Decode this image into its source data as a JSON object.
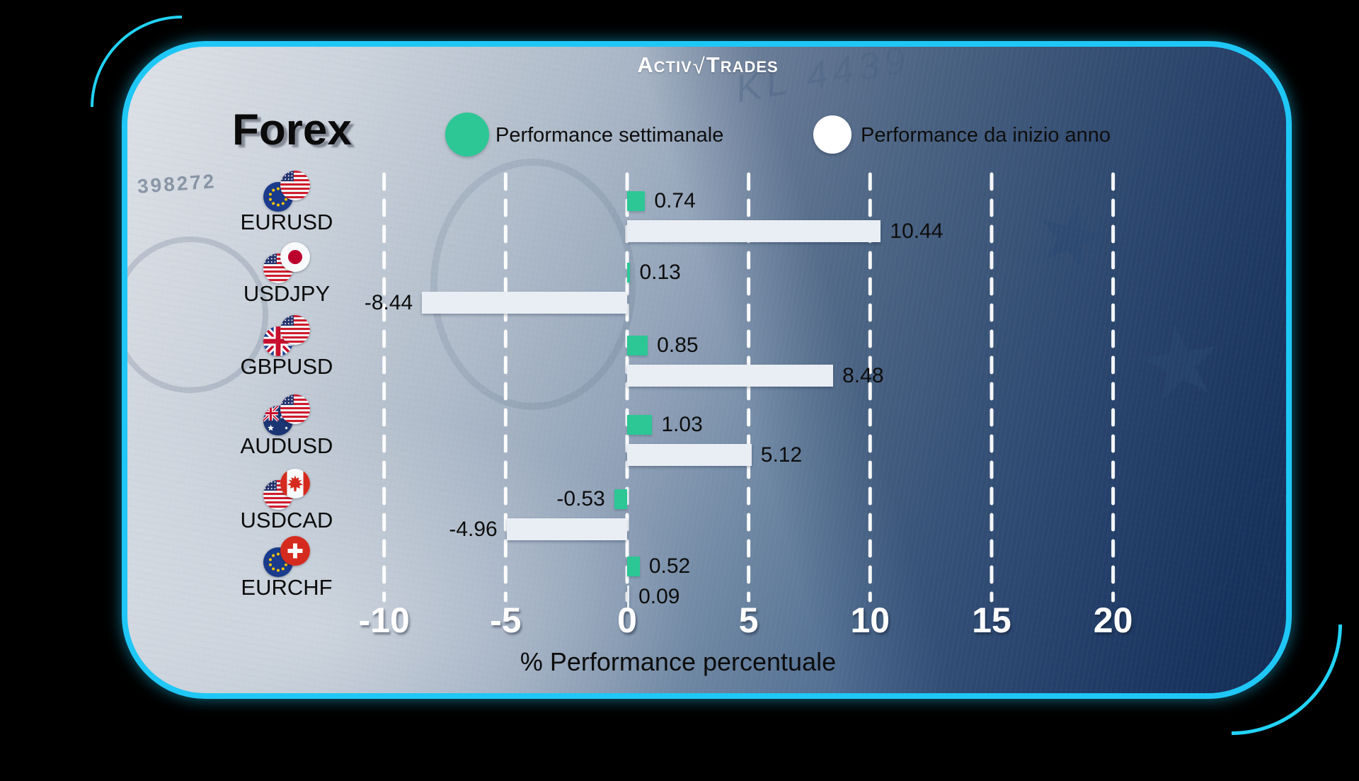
{
  "brand": {
    "name_left": "ACTIV",
    "separator": "√",
    "name_right": "TRADES"
  },
  "header": {
    "title": "Forex"
  },
  "legend": [
    {
      "label": "Performance settimanale",
      "color": "#2cc795",
      "swatch": "circle"
    },
    {
      "label": "Performance da inizio anno",
      "color": "#ffffff",
      "swatch": "circle"
    }
  ],
  "background_texts": {
    "serial": "398272",
    "plate_code": "KL 4439",
    "watermark": "00"
  },
  "colors": {
    "accent_cyan": "#1fc7f6",
    "bar_green": "#2cc795",
    "bar_white": "#e9eef4",
    "card_dark": "#16335e",
    "card_light": "#dee1e7",
    "grid_white": "#ffffff",
    "text_dark": "#0d0d0d",
    "text_white": "#ffffff"
  },
  "chart_data": {
    "type": "bar",
    "orientation": "horizontal",
    "title": "Forex",
    "xlabel": "% Performance percentuale",
    "x_ticks": [
      -10,
      -5,
      0,
      5,
      10,
      15,
      20
    ],
    "x_tick_labels": [
      "-10",
      "-5",
      "0",
      "5",
      "10",
      "15",
      "20"
    ],
    "xlim": [
      -11.5,
      22.5
    ],
    "grid": {
      "style": "dashed",
      "orientation": "vertical",
      "color": "#ffffff"
    },
    "legend_position": "top",
    "categories": [
      "EURUSD",
      "USDJPY",
      "GBPUSD",
      "AUDUSD",
      "USDCAD",
      "EURCHF"
    ],
    "series": [
      {
        "name": "Performance settimanale",
        "color": "#2cc795",
        "values": [
          0.74,
          0.13,
          0.85,
          1.03,
          -0.53,
          0.52
        ]
      },
      {
        "name": "Performance da inizio anno",
        "color": "#e9eef4",
        "values": [
          10.44,
          -8.44,
          8.48,
          5.12,
          -4.96,
          0.09
        ]
      }
    ],
    "rows": [
      {
        "pair": "EURUSD",
        "flags": [
          "eu",
          "us"
        ],
        "weekly": 0.74,
        "weekly_label": "0.74",
        "ytd": 10.44,
        "ytd_label": "10.44"
      },
      {
        "pair": "USDJPY",
        "flags": [
          "us",
          "jp"
        ],
        "weekly": 0.13,
        "weekly_label": "0.13",
        "ytd": -8.44,
        "ytd_label": "-8.44"
      },
      {
        "pair": "GBPUSD",
        "flags": [
          "gb",
          "us"
        ],
        "weekly": 0.85,
        "weekly_label": "0.85",
        "ytd": 8.48,
        "ytd_label": "8.48"
      },
      {
        "pair": "AUDUSD",
        "flags": [
          "au",
          "us"
        ],
        "weekly": 1.03,
        "weekly_label": "1.03",
        "ytd": 5.12,
        "ytd_label": "5.12"
      },
      {
        "pair": "USDCAD",
        "flags": [
          "us",
          "ca"
        ],
        "weekly": -0.53,
        "weekly_label": "-0.53",
        "ytd": -4.96,
        "ytd_label": "-4.96"
      },
      {
        "pair": "EURCHF",
        "flags": [
          "eu",
          "ch"
        ],
        "weekly": 0.52,
        "weekly_label": "0.52",
        "ytd": 0.09,
        "ytd_label": "0.09"
      }
    ]
  }
}
